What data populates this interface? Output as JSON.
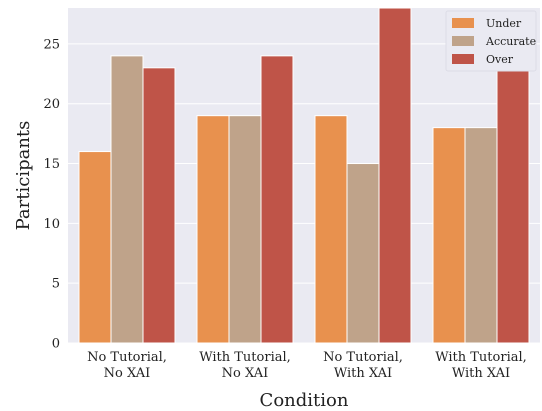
{
  "chart_data": {
    "type": "bar",
    "title": "",
    "xlabel": "Condition",
    "ylabel": "Participants",
    "ylim": [
      0,
      28
    ],
    "yticks": [
      0,
      5,
      10,
      15,
      20,
      25
    ],
    "grid": true,
    "legend_position": "top-right",
    "categories": [
      [
        "No Tutorial,",
        "No XAI"
      ],
      [
        "With Tutorial,",
        "No XAI"
      ],
      [
        "No Tutorial,",
        "With XAI"
      ],
      [
        "With Tutorial,",
        "With XAI"
      ]
    ],
    "series": [
      {
        "name": "Under",
        "color": "#E8914E",
        "values": [
          16,
          19,
          19,
          18
        ]
      },
      {
        "name": "Accurate",
        "color": "#BFA38A",
        "values": [
          24,
          19,
          15,
          18
        ]
      },
      {
        "name": "Over",
        "color": "#BF5448",
        "values": [
          23,
          24,
          28,
          26
        ]
      }
    ],
    "colors": {
      "plot_background": "#EAEAF2",
      "grid": "#FFFFFF"
    }
  }
}
